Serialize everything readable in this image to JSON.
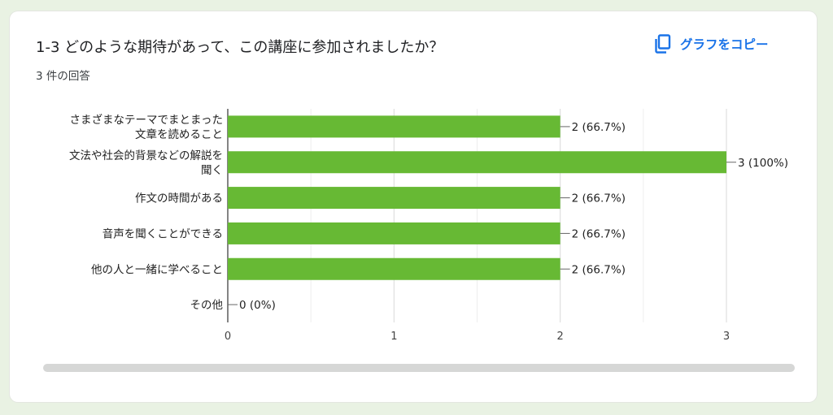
{
  "header": {
    "title": "1-3 どのような期待があって、この講座に参加されましたか？",
    "response_count": "3 件の回答",
    "copy_label": "グラフをコピー",
    "copy_icon": "copy-icon",
    "accent_color": "#1a73e8"
  },
  "chart_data": {
    "type": "bar",
    "orientation": "horizontal",
    "title": "",
    "xlabel": "",
    "ylabel": "",
    "xlim": [
      0,
      3
    ],
    "grid": true,
    "bar_color": "#67b934",
    "x_ticks": [
      "0",
      "1",
      "2",
      "3"
    ],
    "categories": [
      [
        "さまざまなテーマでまとまった",
        "文章を読めること"
      ],
      [
        "文法や社会的背景などの解説を",
        "聞く"
      ],
      [
        "作文の時間がある"
      ],
      [
        "音声を聞くことができる"
      ],
      [
        "他の人と一緒に学べること"
      ],
      [
        "その他"
      ]
    ],
    "values": [
      2,
      3,
      2,
      2,
      2,
      0
    ],
    "value_labels": [
      "2 (66.7%)",
      "3 (100%)",
      "2 (66.7%)",
      "2 (66.7%)",
      "2 (66.7%)",
      "0 (0%)"
    ]
  }
}
